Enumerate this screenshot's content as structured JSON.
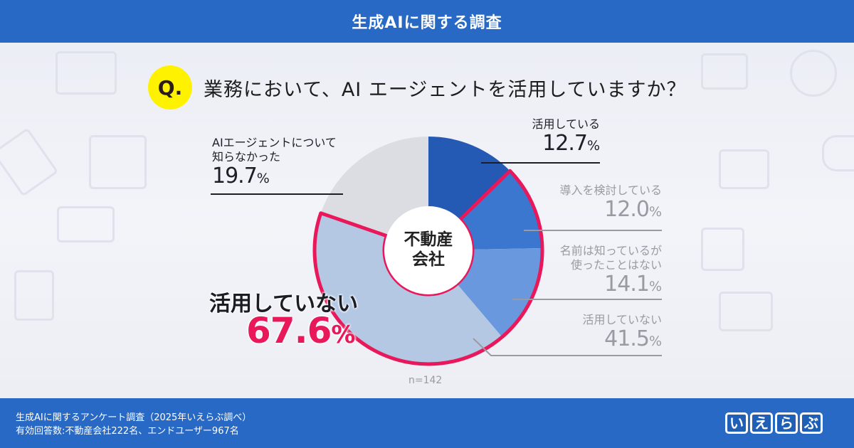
{
  "header": {
    "title": "生成AIに関する調査"
  },
  "question": {
    "badge": "Q.",
    "text": "業務において、AI エージェントを活用していますか？"
  },
  "chart_data": {
    "type": "pie",
    "variant": "donut",
    "title": "業務において、AI エージェントを活用していますか？",
    "center_label": [
      "不動産",
      "会社"
    ],
    "sample_size": "n=142",
    "categories": [
      "活用している",
      "導入を検討している",
      "名前は知っているが使ったことはない",
      "活用していない",
      "AIエージェントについて知らなかった"
    ],
    "values": [
      12.7,
      12.0,
      14.1,
      41.5,
      19.7
    ],
    "colors": [
      "#2459b4",
      "#3b76cf",
      "#6a98de",
      "#b4c8e4",
      "#dcdde2"
    ],
    "highlight": {
      "label": "活用していない",
      "value": 67.6,
      "includes": [
        "導入を検討している",
        "名前は知っているが使ったことはない",
        "活用していない"
      ],
      "outline_color": "#e8185a"
    },
    "legend_position": "callouts"
  },
  "labels": {
    "s1": {
      "name": "活用している",
      "value": "12.7",
      "unit": "%"
    },
    "s2": {
      "name": "導入を検討している",
      "value": "12.0",
      "unit": "%"
    },
    "s3": {
      "name1": "名前は知っているが",
      "name2": "使ったことはない",
      "value": "14.1",
      "unit": "%"
    },
    "s4": {
      "name": "活用していない",
      "value": "41.5",
      "unit": "%"
    },
    "s5": {
      "name1": "AIエージェントについて",
      "name2": "知らなかった",
      "value": "19.7",
      "unit": "%"
    },
    "highlight": {
      "name": "活用していない",
      "value": "67.6",
      "unit": "%"
    },
    "center": {
      "line1": "不動産",
      "line2": "会社"
    },
    "n": "n=142"
  },
  "footer": {
    "line1": "生成AIに関するアンケート調査（2025年いえらぶ調べ）",
    "line2": "有効回答数:不動産会社222名、エンドユーザー967名",
    "logo": [
      "い",
      "え",
      "ら",
      "ぶ"
    ]
  },
  "colors": {
    "header_bg": "#2769c4",
    "accent": "#e8185a",
    "badge": "#fff200"
  }
}
